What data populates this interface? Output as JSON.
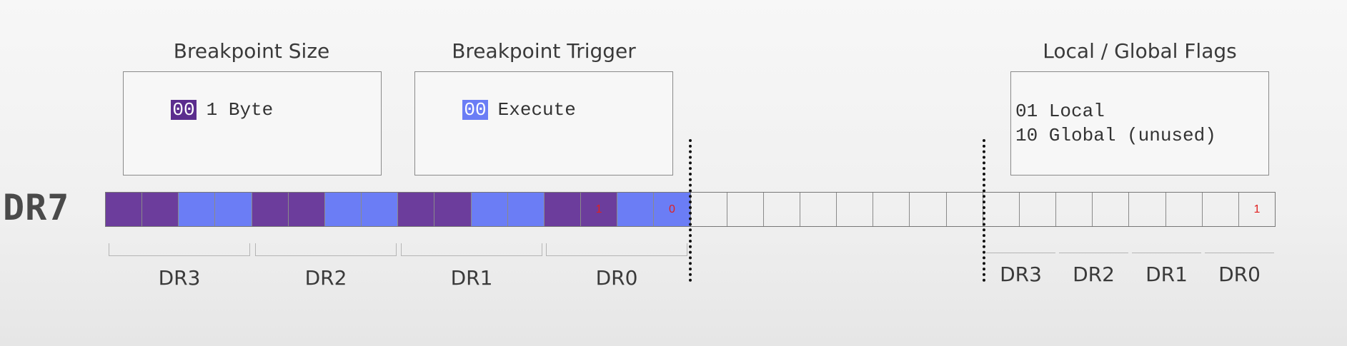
{
  "register": "DR7",
  "headings": {
    "size": "Breakpoint Size",
    "trigger": "Breakpoint Trigger",
    "flags": "Local / Global Flags"
  },
  "size_box": {
    "code": "00",
    "text": "1 Byte"
  },
  "trigger_box": {
    "code": "00",
    "text": "Execute"
  },
  "flags_box": {
    "lines": [
      "01 Local",
      "10 Global (unused)"
    ]
  },
  "bits": [
    {
      "fill": "purple",
      "text": ""
    },
    {
      "fill": "purple",
      "text": ""
    },
    {
      "fill": "blue",
      "text": ""
    },
    {
      "fill": "blue",
      "text": ""
    },
    {
      "fill": "purple",
      "text": ""
    },
    {
      "fill": "purple",
      "text": ""
    },
    {
      "fill": "blue",
      "text": ""
    },
    {
      "fill": "blue",
      "text": ""
    },
    {
      "fill": "purple",
      "text": ""
    },
    {
      "fill": "purple",
      "text": ""
    },
    {
      "fill": "blue",
      "text": ""
    },
    {
      "fill": "blue",
      "text": ""
    },
    {
      "fill": "purple",
      "text": ""
    },
    {
      "fill": "purple",
      "text": "1"
    },
    {
      "fill": "blue",
      "text": ""
    },
    {
      "fill": "blue",
      "text": "0"
    },
    {
      "fill": "none",
      "text": ""
    },
    {
      "fill": "none",
      "text": ""
    },
    {
      "fill": "none",
      "text": ""
    },
    {
      "fill": "none",
      "text": ""
    },
    {
      "fill": "none",
      "text": ""
    },
    {
      "fill": "none",
      "text": ""
    },
    {
      "fill": "none",
      "text": ""
    },
    {
      "fill": "none",
      "text": ""
    },
    {
      "fill": "none",
      "text": ""
    },
    {
      "fill": "none",
      "text": ""
    },
    {
      "fill": "none",
      "text": ""
    },
    {
      "fill": "none",
      "text": ""
    },
    {
      "fill": "none",
      "text": ""
    },
    {
      "fill": "none",
      "text": ""
    },
    {
      "fill": "none",
      "text": ""
    },
    {
      "fill": "none",
      "text": "1"
    }
  ],
  "left_groups": [
    "DR3",
    "DR2",
    "DR1",
    "DR0"
  ],
  "right_groups": [
    "DR3",
    "DR2",
    "DR1",
    "DR0"
  ],
  "colors": {
    "purple": "#6c3d9c",
    "blue": "#6b7df5",
    "code_purple": "#5b2d8e",
    "code_blue": "#6b7df5"
  }
}
